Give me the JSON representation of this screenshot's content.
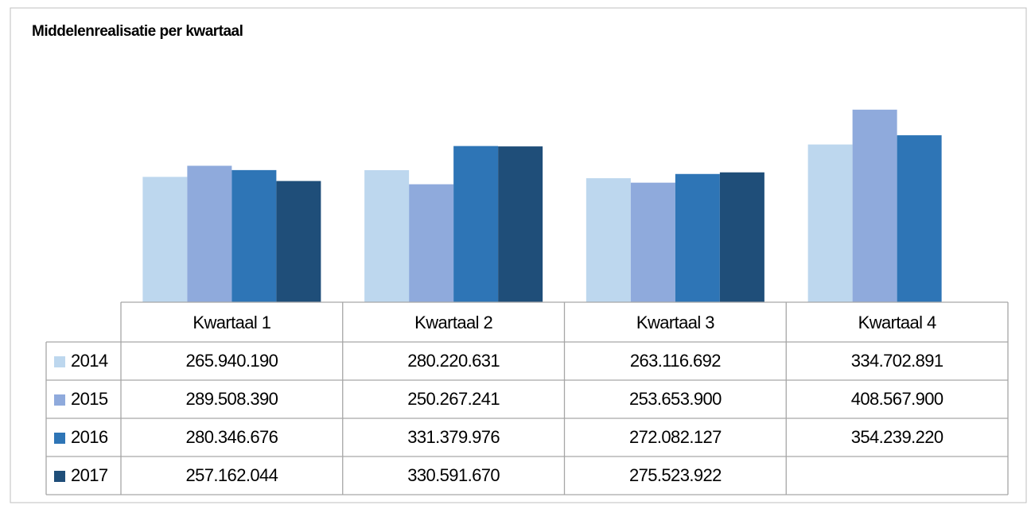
{
  "chart_data": {
    "type": "bar",
    "title": "Middelenrealisatie per kwartaal",
    "categories": [
      "Kwartaal 1",
      "Kwartaal 2",
      "Kwartaal 3",
      "Kwartaal 4"
    ],
    "ylim": [
      0,
      540000000
    ],
    "series": [
      {
        "name": "2014",
        "color": "#bdd7ee",
        "values": [
          265940190,
          280220631,
          263116692,
          334702891
        ],
        "value_labels": [
          "265.940.190",
          "280.220.631",
          "263.116.692",
          "334.702.891"
        ]
      },
      {
        "name": "2015",
        "color": "#8faadc",
        "values": [
          289508390,
          250267241,
          253653900,
          408567900
        ],
        "value_labels": [
          "289.508.390",
          "250.267.241",
          "253.653.900",
          "408.567.900"
        ]
      },
      {
        "name": "2016",
        "color": "#2e75b6",
        "values": [
          280346676,
          331379976,
          272082127,
          354239220
        ],
        "value_labels": [
          "280.346.676",
          "331.379.976",
          "272.082.127",
          "354.239.220"
        ]
      },
      {
        "name": "2017",
        "color": "#1f4e79",
        "values": [
          257162044,
          330591670,
          275523922,
          null
        ],
        "value_labels": [
          "257.162.044",
          "330.591.670",
          "275.523.922",
          null
        ]
      }
    ]
  }
}
